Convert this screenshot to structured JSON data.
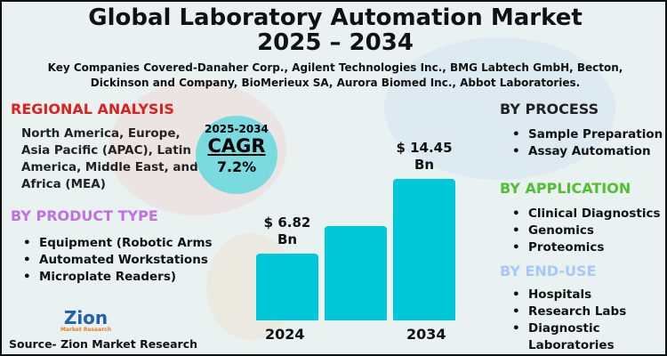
{
  "header": {
    "title_line1": "Global Laboratory Automation Market",
    "title_line2": "2025 – 2034",
    "subtitle": "Key Companies Covered-Danaher Corp., Agilent Technologies Inc., BMG Labtech GmbH, Becton, Dickinson and Company, BioMerieux SA, Aurora Biomed Inc., Abbot Laboratories."
  },
  "regional": {
    "heading": "REGIONAL ANALYSIS",
    "text": "North America, Europe, Asia Pacific (APAC), Latin America, Middle East, and Africa (MEA)",
    "color": "#e02020"
  },
  "product": {
    "heading": "BY PRODUCT TYPE",
    "items": [
      "Equipment (Robotic Arms",
      "Automated Workstations",
      "Microplate Readers)"
    ],
    "color": "#c070e0"
  },
  "cagr": {
    "period": "2025-2034",
    "label": "CAGR",
    "value": "7.2%"
  },
  "process": {
    "heading": "BY PROCESS",
    "items": [
      "Sample Preparation",
      "Assay Automation"
    ]
  },
  "application": {
    "heading": "BY APPLICATION",
    "items": [
      "Clinical Diagnostics",
      "Genomics",
      "Proteomics"
    ],
    "color": "#50c030"
  },
  "enduse": {
    "heading": "BY END-USE",
    "items": [
      "Hospitals",
      "Research Labs",
      "Diagnostic Laboratories"
    ],
    "color": "#a8c8f8"
  },
  "logo": {
    "text": "Zion",
    "sub": "Market Research"
  },
  "source": "Source- Zion Market Research",
  "chart_data": {
    "type": "bar",
    "categories": [
      "2024",
      "",
      "2034"
    ],
    "values": [
      6.82,
      null,
      14.45
    ],
    "data_labels": [
      "$ 6.82 Bn",
      "",
      "$ 14.45 Bn"
    ],
    "unit": "USD Bn",
    "bar_color": "#00c8d8"
  }
}
